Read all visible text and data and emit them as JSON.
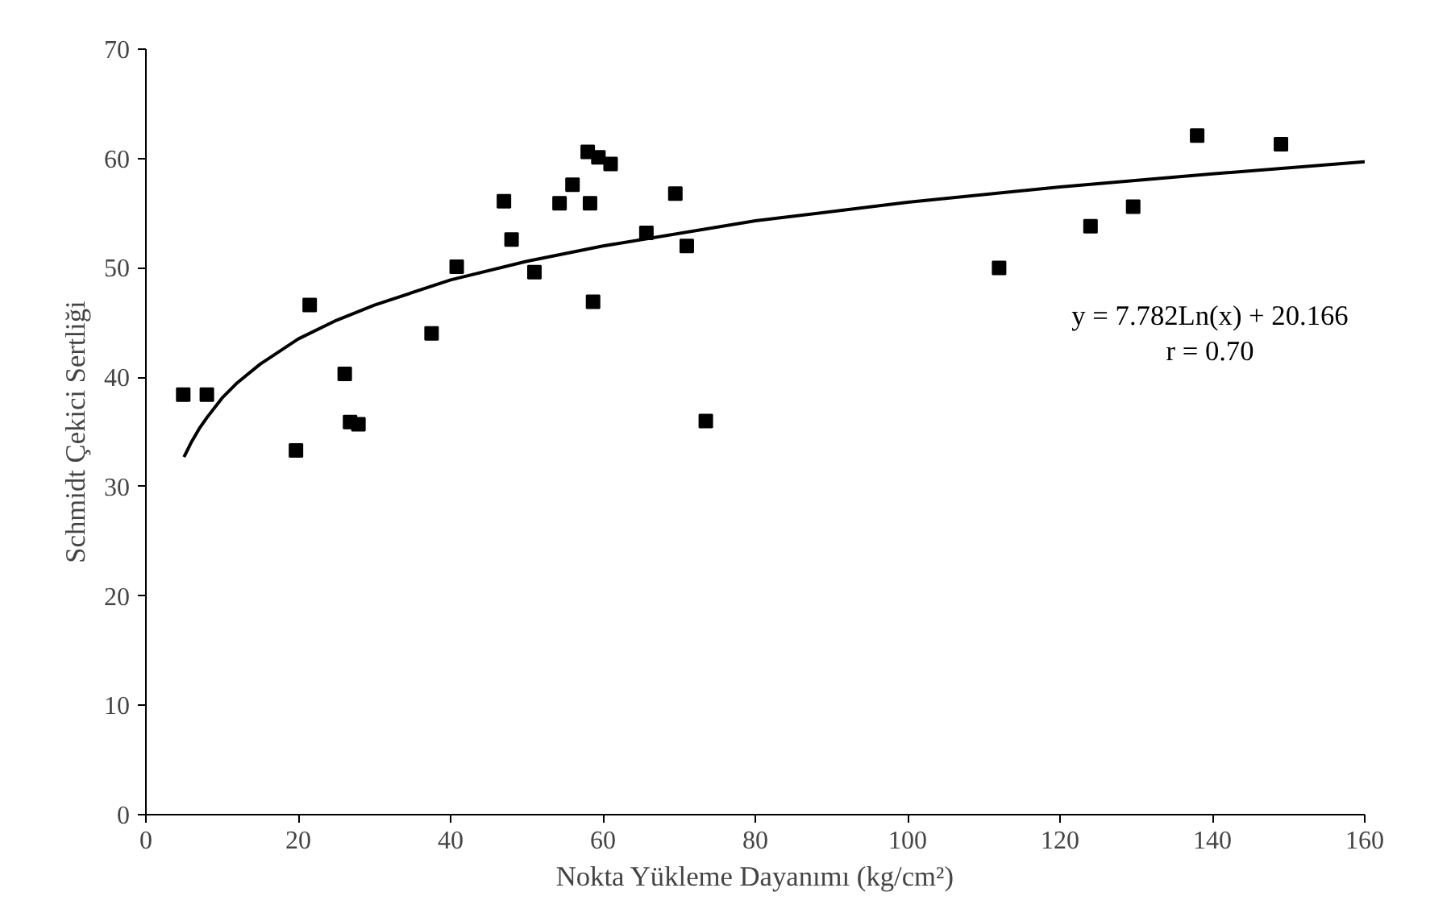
{
  "chart_data": {
    "type": "scatter",
    "xlabel": "Nokta Yükleme Dayanımı (kg/cm²)",
    "ylabel": "Schmidt Çekici Sertliği",
    "annotations": [
      "y = 7.782Ln(x) + 20.166",
      "r = 0.70"
    ],
    "xlim": [
      0,
      160
    ],
    "xticks": [
      0,
      20,
      40,
      60,
      80,
      100,
      120,
      140,
      160
    ],
    "ylim": [
      0,
      70
    ],
    "yticks": [
      0,
      10,
      20,
      30,
      40,
      50,
      60,
      70
    ],
    "grid": false,
    "series": [
      {
        "marker": "square",
        "color": "#000000",
        "x": [
          4.9,
          8,
          19.7,
          21.5,
          26.1,
          26.8,
          27.9,
          37.5,
          40.8,
          47,
          48,
          51,
          54.3,
          56,
          58,
          58.3,
          58.7,
          59.4,
          61,
          65.7,
          69.5,
          71,
          73.5,
          112,
          124,
          129.6,
          138,
          149
        ],
        "values": [
          38.4,
          38.4,
          33.3,
          46.6,
          40.3,
          35.9,
          35.7,
          44.0,
          50.1,
          56.1,
          52.6,
          49.6,
          55.9,
          57.6,
          60.6,
          55.9,
          46.9,
          60.1,
          59.5,
          53.2,
          56.8,
          52.0,
          36.0,
          50.0,
          53.8,
          55.6,
          62.1,
          61.3
        ]
      },
      {
        "type": "line",
        "color": "#000000",
        "x": [
          5,
          6,
          7,
          8,
          10,
          12,
          15,
          20,
          25,
          30,
          40,
          50,
          60,
          80,
          100,
          120,
          140,
          160
        ],
        "values": [
          32.7,
          34.1,
          35.3,
          36.3,
          38.1,
          39.5,
          41.2,
          43.5,
          45.2,
          46.6,
          48.9,
          50.6,
          52.0,
          54.3,
          56.0,
          57.4,
          58.6,
          59.7
        ]
      }
    ]
  }
}
